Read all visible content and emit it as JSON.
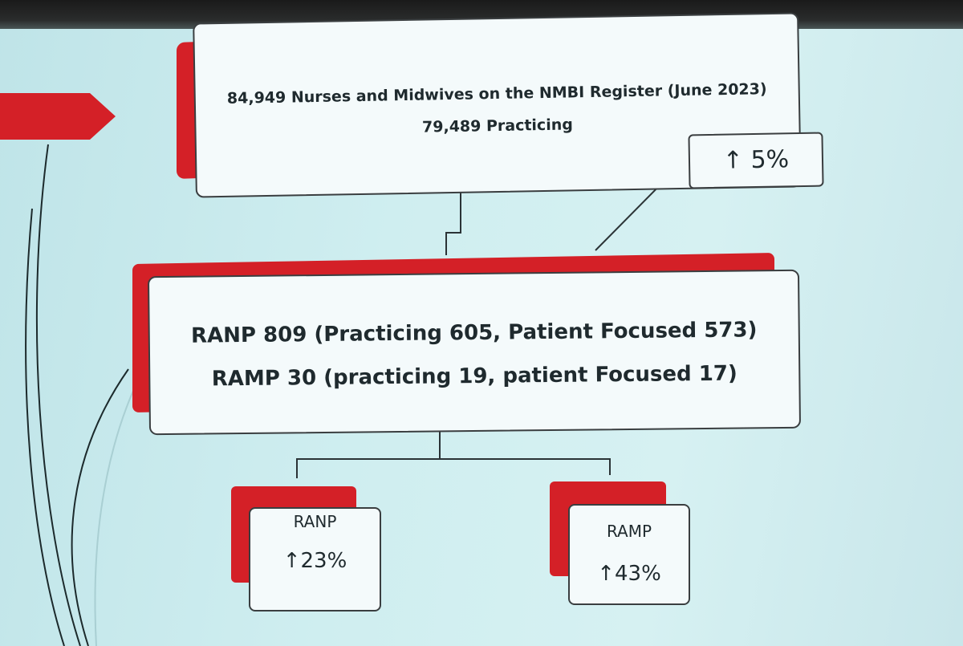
{
  "top_box": {
    "line1": "84,949 Nurses and Midwives on the NMBI Register (June 2023)",
    "line2": "79,489 Practicing"
  },
  "growth_badge": {
    "text": "↑ 5%"
  },
  "middle_box": {
    "line1": "RANP 809 (Practicing 605, Patient Focused 573)",
    "line2": "RAMP 30 (practicing 19, patient Focused 17)"
  },
  "ranp_box": {
    "label": "RANP",
    "growth": "↑23%"
  },
  "ramp_box": {
    "label": "RAMP",
    "growth": "↑43%"
  },
  "colors": {
    "accent_red": "#d42027",
    "card_bg": "#f4fafb",
    "border": "#3a3e40",
    "background": "#cfeef0"
  }
}
